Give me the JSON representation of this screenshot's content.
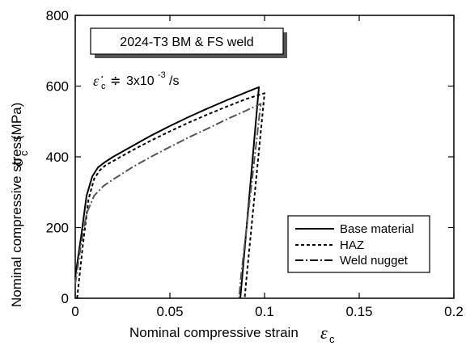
{
  "chart_data": {
    "type": "line",
    "annotation_box": "2024-T3 BM & FS weld",
    "strain_rate": {
      "symbol": "ε̇",
      "subscript": "c",
      "approx": "≑",
      "value_base": "3x10",
      "value_exp": "-3",
      "unit": "/s"
    },
    "xlabel": "Nominal compressive strain",
    "xlabel_symbol": "ε",
    "xlabel_symbol_sub": "c",
    "ylabel": "Nominal compressive stress",
    "ylabel_symbol": "σ",
    "ylabel_symbol_sub": "c",
    "ylabel_unit": "(MPa)",
    "xlim": [
      0,
      0.2
    ],
    "ylim": [
      0,
      800
    ],
    "xticks": [
      0,
      0.05,
      0.1,
      0.15,
      0.2
    ],
    "xtick_labels": [
      "0",
      "0.05",
      "0.1",
      "0.15",
      "0.2"
    ],
    "yticks": [
      0,
      200,
      400,
      600,
      800
    ],
    "ytick_labels": [
      "0",
      "200",
      "400",
      "600",
      "800"
    ],
    "grid": false,
    "legend_position": "bottom-right",
    "series": [
      {
        "name": "Base material",
        "style": "solid",
        "color": "#000000",
        "x": [
          0.0,
          0.003,
          0.006,
          0.009,
          0.012,
          0.016,
          0.02,
          0.03,
          0.04,
          0.05,
          0.06,
          0.07,
          0.08,
          0.09,
          0.097,
          0.0882,
          0.0872
        ],
        "y": [
          60,
          170,
          290,
          345,
          370,
          386,
          400,
          430,
          460,
          487,
          513,
          537,
          560,
          582,
          597,
          60,
          0
        ]
      },
      {
        "name": "HAZ",
        "style": "dotted",
        "color": "#000000",
        "x": [
          0.001,
          0.004,
          0.007,
          0.01,
          0.013,
          0.016,
          0.02,
          0.03,
          0.04,
          0.05,
          0.06,
          0.07,
          0.08,
          0.09,
          0.1,
          0.0905,
          0.0895
        ],
        "y": [
          0,
          150,
          280,
          338,
          362,
          376,
          388,
          418,
          446,
          472,
          497,
          520,
          542,
          563,
          580,
          60,
          0
        ]
      },
      {
        "name": "Weld nugget",
        "style": "dashdot",
        "color": "#555555",
        "x": [
          0.0,
          0.003,
          0.006,
          0.01,
          0.015,
          0.02,
          0.03,
          0.04,
          0.05,
          0.06,
          0.07,
          0.08,
          0.09,
          0.098,
          0.0875,
          0.0865
        ],
        "y": [
          40,
          150,
          240,
          290,
          318,
          336,
          370,
          400,
          428,
          455,
          480,
          506,
          530,
          550,
          60,
          0
        ]
      }
    ]
  }
}
